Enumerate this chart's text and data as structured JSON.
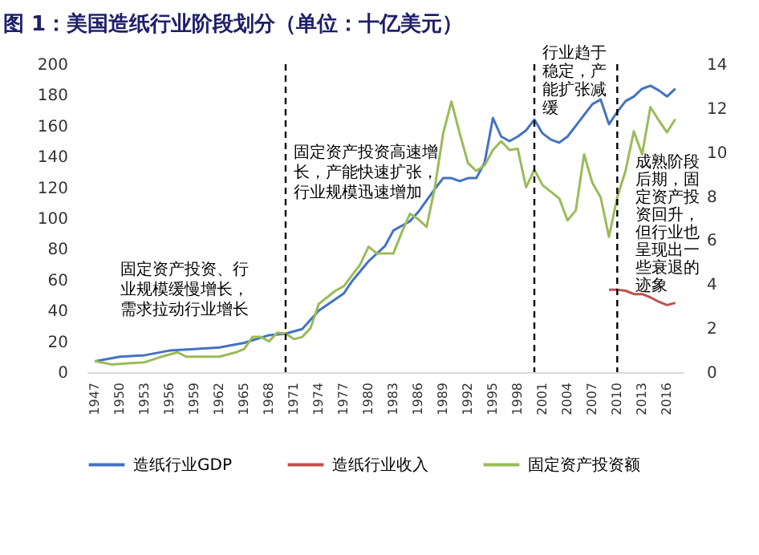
{
  "chart_data": {
    "type": "line",
    "title": "图 1：美国造纸行业阶段划分（单位：十亿美元）",
    "xlim": [
      1946,
      2018
    ],
    "xticks": [
      1947,
      1950,
      1953,
      1956,
      1959,
      1962,
      1965,
      1968,
      1971,
      1974,
      1977,
      1980,
      1983,
      1986,
      1989,
      1992,
      1995,
      1998,
      2001,
      2004,
      2007,
      2010,
      2013,
      2016
    ],
    "ylim": [
      0,
      200
    ],
    "yticks": [
      0,
      20,
      40,
      60,
      80,
      100,
      120,
      140,
      160,
      180,
      200
    ],
    "y2lim": [
      0,
      14
    ],
    "y2ticks": [
      0,
      2,
      4,
      6,
      8,
      10,
      12,
      14
    ],
    "legend": "bottom",
    "series": [
      {
        "name": "造纸行业GDP",
        "color": "#4472c4",
        "x": [
          1947,
          1950,
          1953,
          1956,
          1959,
          1962,
          1965,
          1968,
          1970,
          1972,
          1974,
          1977,
          1978,
          1980,
          1982,
          1983,
          1985,
          1986,
          1988,
          1989,
          1990,
          1991,
          1992,
          1993,
          1994,
          1995,
          1996,
          1997,
          1998,
          1999,
          2000,
          2001,
          2002,
          2003,
          2004,
          2005,
          2006,
          2007,
          2008,
          2009,
          2010,
          2011,
          2012,
          2013,
          2014,
          2015,
          2016,
          2017
        ],
        "values": [
          7,
          10,
          11,
          14,
          15,
          16,
          19,
          24,
          25,
          28,
          40,
          51,
          59,
          72,
          82,
          92,
          98,
          104,
          119,
          126,
          126,
          124,
          126,
          126,
          136,
          165,
          153,
          150,
          153,
          157,
          164,
          155,
          151,
          149,
          153,
          160,
          167,
          174,
          177,
          161,
          169,
          176,
          179,
          184,
          186,
          183,
          179,
          184
        ]
      },
      {
        "name": "造纸行业收入",
        "color": "#c0504d",
        "axis": "y2",
        "x": [
          2009,
          2010,
          2011,
          2012,
          2013,
          2014,
          2015,
          2016,
          2017
        ],
        "values": [
          3.75,
          3.75,
          3.7,
          3.55,
          3.55,
          3.4,
          3.2,
          3.05,
          3.15
        ]
      },
      {
        "name": "固定资产投资额",
        "color": "#9bbb59",
        "axis": "y2",
        "x": [
          1947,
          1949,
          1951,
          1953,
          1955,
          1957,
          1958,
          1960,
          1962,
          1964,
          1965,
          1966,
          1967,
          1968,
          1969,
          1970,
          1971,
          1972,
          1973,
          1974,
          1975,
          1976,
          1977,
          1979,
          1980,
          1981,
          1982,
          1983,
          1984,
          1985,
          1986,
          1987,
          1988,
          1989,
          1990,
          1991,
          1992,
          1993,
          1994,
          1995,
          1996,
          1997,
          1998,
          1999,
          2000,
          2001,
          2002,
          2003,
          2004,
          2005,
          2006,
          2007,
          2008,
          2009,
          2010,
          2011,
          2012,
          2013,
          2014,
          2015,
          2016,
          2017
        ],
        "values": [
          0.5,
          0.35,
          0.4,
          0.45,
          0.7,
          0.9,
          0.7,
          0.7,
          0.7,
          0.9,
          1.05,
          1.6,
          1.6,
          1.4,
          1.8,
          1.75,
          1.5,
          1.6,
          2.0,
          3.1,
          3.4,
          3.7,
          3.9,
          4.9,
          5.7,
          5.4,
          5.4,
          5.4,
          6.35,
          7.2,
          6.95,
          6.6,
          8.4,
          10.85,
          12.3,
          10.85,
          9.5,
          9.15,
          9.4,
          10.1,
          10.5,
          10.1,
          10.15,
          8.4,
          9.2,
          8.5,
          8.2,
          7.9,
          6.9,
          7.35,
          9.9,
          8.6,
          7.95,
          6.15,
          7.95,
          9.15,
          10.95,
          9.9,
          12.05,
          11.45,
          10.9,
          11.5
        ]
      }
    ],
    "ref_lines": [
      {
        "axis": "x",
        "value": 1970,
        "line_style": "dashed",
        "color": "#000000"
      },
      {
        "axis": "x",
        "value": 2000,
        "line_style": "dashed",
        "color": "#000000"
      },
      {
        "axis": "x",
        "value": 2010,
        "line_style": "dashed",
        "color": "#000000"
      }
    ],
    "annotations": [
      "固定资产投资、行业规模缓慢增长，需求拉动行业增长",
      "固定资产投资高速增长，产能快速扩张，行业规模迅速增加",
      "行业趋于稳定，产能扩张减缓",
      "成熟阶段后期，固定资产投资回升，但行业也呈现出一些衰退的迹象"
    ]
  }
}
